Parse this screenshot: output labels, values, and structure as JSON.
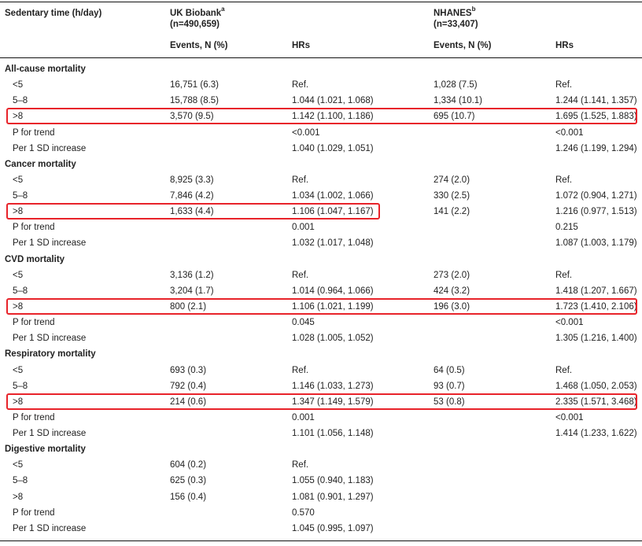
{
  "header": {
    "col0": "Sedentary time (h/day)",
    "uk_title": "UK Biobank",
    "uk_sup": "a",
    "uk_n": "(n=490,659)",
    "nh_title": "NHANES",
    "nh_sup": "b",
    "nh_n": "(n=33,407)",
    "events": "Events, N (%)",
    "hrs": "HRs"
  },
  "rows": [
    {
      "type": "section",
      "label": "All-cause mortality"
    },
    {
      "type": "data",
      "label": "<5",
      "uk_events": "16,751 (6.3)",
      "uk_hr": "Ref.",
      "nh_events": "1,028 (7.5)",
      "nh_hr": "Ref."
    },
    {
      "type": "data",
      "label": "5–8",
      "uk_events": "15,788 (8.5)",
      "uk_hr": "1.044 (1.021, 1.068)",
      "nh_events": "1,334 (10.1)",
      "nh_hr": "1.244 (1.141, 1.357)"
    },
    {
      "type": "data",
      "label": ">8",
      "uk_events": "3,570 (9.5)",
      "uk_hr": "1.142 (1.100, 1.186)",
      "nh_events": "695 (10.7)",
      "nh_hr": "1.695 (1.525, 1.883)",
      "highlight": "full"
    },
    {
      "type": "data",
      "label": "P for trend",
      "uk_events": "",
      "uk_hr": "<0.001",
      "nh_events": "",
      "nh_hr": "<0.001"
    },
    {
      "type": "data",
      "label": "Per 1 SD increase",
      "uk_events": "",
      "uk_hr": "1.040 (1.029, 1.051)",
      "nh_events": "",
      "nh_hr": "1.246 (1.199, 1.294)"
    },
    {
      "type": "section",
      "label": "Cancer mortality"
    },
    {
      "type": "data",
      "label": "<5",
      "uk_events": "8,925 (3.3)",
      "uk_hr": "Ref.",
      "nh_events": "274 (2.0)",
      "nh_hr": "Ref."
    },
    {
      "type": "data",
      "label": "5–8",
      "uk_events": "7,846 (4.2)",
      "uk_hr": "1.034 (1.002, 1.066)",
      "nh_events": "330 (2.5)",
      "nh_hr": "1.072 (0.904, 1.271)"
    },
    {
      "type": "data",
      "label": ">8",
      "uk_events": "1,633 (4.4)",
      "uk_hr": "1.106 (1.047, 1.167)",
      "nh_events": "141 (2.2)",
      "nh_hr": "1.216 (0.977, 1.513)",
      "highlight": "uk"
    },
    {
      "type": "data",
      "label": "P for trend",
      "uk_events": "",
      "uk_hr": "0.001",
      "nh_events": "",
      "nh_hr": "0.215"
    },
    {
      "type": "data",
      "label": "Per 1 SD increase",
      "uk_events": "",
      "uk_hr": "1.032 (1.017, 1.048)",
      "nh_events": "",
      "nh_hr": "1.087 (1.003, 1.179)"
    },
    {
      "type": "section",
      "label": "CVD mortality"
    },
    {
      "type": "data",
      "label": "<5",
      "uk_events": "3,136 (1.2)",
      "uk_hr": "Ref.",
      "nh_events": "273 (2.0)",
      "nh_hr": "Ref."
    },
    {
      "type": "data",
      "label": "5–8",
      "uk_events": "3,204 (1.7)",
      "uk_hr": "1.014 (0.964, 1.066)",
      "nh_events": "424 (3.2)",
      "nh_hr": "1.418 (1.207, 1.667)"
    },
    {
      "type": "data",
      "label": ">8",
      "uk_events": "800 (2.1)",
      "uk_hr": "1.106 (1.021, 1.199)",
      "nh_events": "196 (3.0)",
      "nh_hr": "1.723 (1.410, 2.106)",
      "highlight": "full"
    },
    {
      "type": "data",
      "label": "P for trend",
      "uk_events": "",
      "uk_hr": "0.045",
      "nh_events": "",
      "nh_hr": "<0.001"
    },
    {
      "type": "data",
      "label": "Per 1 SD increase",
      "uk_events": "",
      "uk_hr": "1.028 (1.005, 1.052)",
      "nh_events": "",
      "nh_hr": "1.305 (1.216, 1.400)"
    },
    {
      "type": "section",
      "label": "Respiratory mortality"
    },
    {
      "type": "data",
      "label": "<5",
      "uk_events": "693 (0.3)",
      "uk_hr": "Ref.",
      "nh_events": "64 (0.5)",
      "nh_hr": "Ref."
    },
    {
      "type": "data",
      "label": "5–8",
      "uk_events": "792 (0.4)",
      "uk_hr": "1.146 (1.033, 1.273)",
      "nh_events": "93 (0.7)",
      "nh_hr": "1.468 (1.050, 2.053)"
    },
    {
      "type": "data",
      "label": ">8",
      "uk_events": "214 (0.6)",
      "uk_hr": "1.347 (1.149, 1.579)",
      "nh_events": "53 (0.8)",
      "nh_hr": "2.335 (1.571, 3.468)",
      "highlight": "full"
    },
    {
      "type": "data",
      "label": "P for trend",
      "uk_events": "",
      "uk_hr": "0.001",
      "nh_events": "",
      "nh_hr": "<0.001"
    },
    {
      "type": "data",
      "label": "Per 1 SD increase",
      "uk_events": "",
      "uk_hr": "1.101 (1.056, 1.148)",
      "nh_events": "",
      "nh_hr": "1.414 (1.233, 1.622)"
    },
    {
      "type": "section",
      "label": "Digestive mortality"
    },
    {
      "type": "data",
      "label": "<5",
      "uk_events": "604 (0.2)",
      "uk_hr": "Ref.",
      "nh_events": "",
      "nh_hr": ""
    },
    {
      "type": "data",
      "label": "5–8",
      "uk_events": "625 (0.3)",
      "uk_hr": "1.055 (0.940, 1.183)",
      "nh_events": "",
      "nh_hr": ""
    },
    {
      "type": "data",
      "label": ">8",
      "uk_events": "156 (0.4)",
      "uk_hr": "1.081 (0.901, 1.297)",
      "nh_events": "",
      "nh_hr": ""
    },
    {
      "type": "data",
      "label": "P for trend",
      "uk_events": "",
      "uk_hr": "0.570",
      "nh_events": "",
      "nh_hr": ""
    },
    {
      "type": "data",
      "label": "Per 1 SD increase",
      "uk_events": "",
      "uk_hr": "1.045 (0.995, 1.097)",
      "nh_events": "",
      "nh_hr": ""
    }
  ],
  "highlight_color": "#e8232a"
}
